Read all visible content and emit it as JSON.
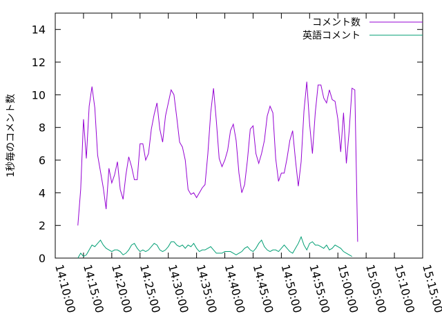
{
  "chart_data": {
    "type": "line",
    "title": "",
    "xlabel": "",
    "ylabel": "1秒毎のコメント数",
    "xlim": [
      "14:10:00",
      "15:15:00"
    ],
    "ylim": [
      0,
      15
    ],
    "x_ticks": [
      "14:10:00",
      "14:15:00",
      "14:20:00",
      "14:25:00",
      "14:30:00",
      "14:35:00",
      "14:40:00",
      "14:45:00",
      "14:50:00",
      "14:55:00",
      "15:00:00",
      "15:05:00",
      "15:10:00",
      "15:15:00"
    ],
    "y_ticks": [
      0,
      2,
      4,
      6,
      8,
      10,
      12,
      14
    ],
    "grid": false,
    "legend": "top-right",
    "series": [
      {
        "name": "コメント数",
        "color": "#9400d3",
        "points": [
          [
            "14:14:00",
            2.0
          ],
          [
            "14:14:30",
            4.2
          ],
          [
            "14:15:00",
            8.5
          ],
          [
            "14:15:30",
            6.1
          ],
          [
            "14:16:00",
            9.3
          ],
          [
            "14:16:30",
            10.5
          ],
          [
            "14:17:00",
            9.2
          ],
          [
            "14:17:30",
            6.3
          ],
          [
            "14:18:00",
            5.3
          ],
          [
            "14:18:30",
            4.3
          ],
          [
            "14:19:00",
            3.0
          ],
          [
            "14:19:30",
            5.5
          ],
          [
            "14:20:00",
            4.6
          ],
          [
            "14:20:30",
            5.1
          ],
          [
            "14:21:00",
            5.9
          ],
          [
            "14:21:30",
            4.2
          ],
          [
            "14:22:00",
            3.6
          ],
          [
            "14:22:30",
            5.1
          ],
          [
            "14:23:00",
            6.2
          ],
          [
            "14:23:30",
            5.6
          ],
          [
            "14:24:00",
            4.8
          ],
          [
            "14:24:30",
            4.8
          ],
          [
            "14:25:00",
            7.0
          ],
          [
            "14:25:30",
            7.0
          ],
          [
            "14:26:00",
            6.0
          ],
          [
            "14:26:30",
            6.4
          ],
          [
            "14:27:00",
            7.9
          ],
          [
            "14:27:30",
            8.8
          ],
          [
            "14:28:00",
            9.5
          ],
          [
            "14:28:30",
            7.9
          ],
          [
            "14:29:00",
            7.1
          ],
          [
            "14:29:30",
            8.7
          ],
          [
            "14:30:00",
            9.5
          ],
          [
            "14:30:30",
            10.3
          ],
          [
            "14:31:00",
            10.0
          ],
          [
            "14:31:30",
            8.6
          ],
          [
            "14:32:00",
            7.1
          ],
          [
            "14:32:30",
            6.8
          ],
          [
            "14:33:00",
            6.0
          ],
          [
            "14:33:30",
            4.2
          ],
          [
            "14:34:00",
            3.9
          ],
          [
            "14:34:30",
            4.0
          ],
          [
            "14:35:00",
            3.7
          ],
          [
            "14:35:30",
            4.0
          ],
          [
            "14:36:00",
            4.3
          ],
          [
            "14:36:30",
            4.5
          ],
          [
            "14:37:00",
            6.4
          ],
          [
            "14:37:30",
            8.9
          ],
          [
            "14:38:00",
            10.4
          ],
          [
            "14:38:30",
            8.4
          ],
          [
            "14:39:00",
            6.1
          ],
          [
            "14:39:30",
            5.6
          ],
          [
            "14:40:00",
            6.0
          ],
          [
            "14:40:30",
            6.6
          ],
          [
            "14:41:00",
            7.8
          ],
          [
            "14:41:30",
            8.2
          ],
          [
            "14:42:00",
            7.2
          ],
          [
            "14:42:30",
            5.2
          ],
          [
            "14:43:00",
            4.0
          ],
          [
            "14:43:30",
            4.5
          ],
          [
            "14:44:00",
            6.0
          ],
          [
            "14:44:30",
            7.9
          ],
          [
            "14:45:00",
            8.1
          ],
          [
            "14:45:30",
            6.4
          ],
          [
            "14:46:00",
            5.8
          ],
          [
            "14:46:30",
            6.4
          ],
          [
            "14:47:00",
            7.2
          ],
          [
            "14:47:30",
            8.7
          ],
          [
            "14:48:00",
            9.3
          ],
          [
            "14:48:30",
            8.9
          ],
          [
            "14:49:00",
            6.1
          ],
          [
            "14:49:30",
            4.7
          ],
          [
            "14:50:00",
            5.2
          ],
          [
            "14:50:30",
            5.2
          ],
          [
            "14:51:00",
            6.1
          ],
          [
            "14:51:30",
            7.2
          ],
          [
            "14:52:00",
            7.8
          ],
          [
            "14:52:30",
            6.0
          ],
          [
            "14:53:00",
            4.4
          ],
          [
            "14:53:30",
            5.9
          ],
          [
            "14:54:00",
            9.0
          ],
          [
            "14:54:30",
            10.8
          ],
          [
            "14:55:00",
            8.2
          ],
          [
            "14:55:30",
            6.4
          ],
          [
            "14:56:00",
            8.9
          ],
          [
            "14:56:30",
            10.6
          ],
          [
            "14:57:00",
            10.6
          ],
          [
            "14:57:30",
            9.8
          ],
          [
            "14:58:00",
            9.5
          ],
          [
            "14:58:30",
            10.3
          ],
          [
            "14:59:00",
            9.7
          ],
          [
            "14:59:30",
            9.6
          ],
          [
            "15:00:00",
            8.5
          ],
          [
            "15:00:30",
            6.5
          ],
          [
            "15:01:00",
            8.9
          ],
          [
            "15:01:30",
            5.8
          ],
          [
            "15:02:00",
            7.8
          ],
          [
            "15:02:30",
            10.4
          ],
          [
            "15:03:00",
            10.3
          ],
          [
            "15:03:30",
            1.0
          ]
        ]
      },
      {
        "name": "英語コメント",
        "color": "#009e73",
        "points": [
          [
            "14:14:00",
            0.0
          ],
          [
            "14:14:30",
            0.3
          ],
          [
            "14:15:00",
            0.1
          ],
          [
            "14:15:30",
            0.2
          ],
          [
            "14:16:00",
            0.5
          ],
          [
            "14:16:30",
            0.8
          ],
          [
            "14:17:00",
            0.7
          ],
          [
            "14:17:30",
            0.9
          ],
          [
            "14:18:00",
            1.1
          ],
          [
            "14:18:30",
            0.8
          ],
          [
            "14:19:00",
            0.6
          ],
          [
            "14:19:30",
            0.5
          ],
          [
            "14:20:00",
            0.4
          ],
          [
            "14:20:30",
            0.5
          ],
          [
            "14:21:00",
            0.5
          ],
          [
            "14:21:30",
            0.4
          ],
          [
            "14:22:00",
            0.2
          ],
          [
            "14:22:30",
            0.3
          ],
          [
            "14:23:00",
            0.5
          ],
          [
            "14:23:30",
            0.8
          ],
          [
            "14:24:00",
            0.9
          ],
          [
            "14:24:30",
            0.6
          ],
          [
            "14:25:00",
            0.4
          ],
          [
            "14:25:30",
            0.5
          ],
          [
            "14:26:00",
            0.4
          ],
          [
            "14:26:30",
            0.5
          ],
          [
            "14:27:00",
            0.7
          ],
          [
            "14:27:30",
            0.9
          ],
          [
            "14:28:00",
            0.8
          ],
          [
            "14:28:30",
            0.5
          ],
          [
            "14:29:00",
            0.4
          ],
          [
            "14:29:30",
            0.5
          ],
          [
            "14:30:00",
            0.7
          ],
          [
            "14:30:30",
            1.0
          ],
          [
            "14:31:00",
            1.0
          ],
          [
            "14:31:30",
            0.8
          ],
          [
            "14:32:00",
            0.7
          ],
          [
            "14:32:30",
            0.8
          ],
          [
            "14:33:00",
            0.6
          ],
          [
            "14:33:30",
            0.8
          ],
          [
            "14:34:00",
            0.7
          ],
          [
            "14:34:30",
            0.9
          ],
          [
            "14:35:00",
            0.6
          ],
          [
            "14:35:30",
            0.4
          ],
          [
            "14:36:00",
            0.5
          ],
          [
            "14:36:30",
            0.5
          ],
          [
            "14:37:00",
            0.6
          ],
          [
            "14:37:30",
            0.7
          ],
          [
            "14:38:00",
            0.5
          ],
          [
            "14:38:30",
            0.3
          ],
          [
            "14:39:00",
            0.3
          ],
          [
            "14:39:30",
            0.3
          ],
          [
            "14:40:00",
            0.4
          ],
          [
            "14:40:30",
            0.4
          ],
          [
            "14:41:00",
            0.4
          ],
          [
            "14:41:30",
            0.3
          ],
          [
            "14:42:00",
            0.2
          ],
          [
            "14:42:30",
            0.3
          ],
          [
            "14:43:00",
            0.4
          ],
          [
            "14:43:30",
            0.6
          ],
          [
            "14:44:00",
            0.7
          ],
          [
            "14:44:30",
            0.5
          ],
          [
            "14:45:00",
            0.4
          ],
          [
            "14:45:30",
            0.6
          ],
          [
            "14:46:00",
            0.9
          ],
          [
            "14:46:30",
            1.1
          ],
          [
            "14:47:00",
            0.7
          ],
          [
            "14:47:30",
            0.5
          ],
          [
            "14:48:00",
            0.4
          ],
          [
            "14:48:30",
            0.5
          ],
          [
            "14:49:00",
            0.5
          ],
          [
            "14:49:30",
            0.4
          ],
          [
            "14:50:00",
            0.6
          ],
          [
            "14:50:30",
            0.8
          ],
          [
            "14:51:00",
            0.6
          ],
          [
            "14:51:30",
            0.4
          ],
          [
            "14:52:00",
            0.3
          ],
          [
            "14:52:30",
            0.6
          ],
          [
            "14:53:00",
            0.9
          ],
          [
            "14:53:30",
            1.3
          ],
          [
            "14:54:00",
            0.8
          ],
          [
            "14:54:30",
            0.5
          ],
          [
            "14:55:00",
            0.9
          ],
          [
            "14:55:30",
            1.0
          ],
          [
            "14:56:00",
            0.8
          ],
          [
            "14:56:30",
            0.8
          ],
          [
            "14:57:00",
            0.7
          ],
          [
            "14:57:30",
            0.6
          ],
          [
            "14:58:00",
            0.8
          ],
          [
            "14:58:30",
            0.5
          ],
          [
            "14:59:00",
            0.6
          ],
          [
            "14:59:30",
            0.8
          ],
          [
            "15:00:00",
            0.7
          ],
          [
            "15:00:30",
            0.6
          ],
          [
            "15:01:00",
            0.4
          ],
          [
            "15:01:30",
            0.3
          ],
          [
            "15:02:00",
            0.2
          ],
          [
            "15:02:30",
            0.1
          ]
        ]
      }
    ]
  }
}
